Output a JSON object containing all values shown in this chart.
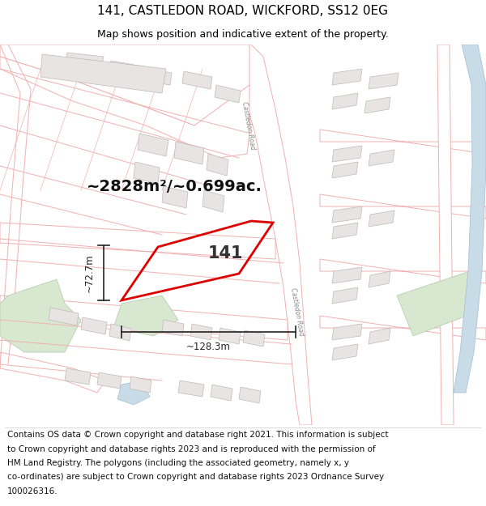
{
  "title": "141, CASTLEDON ROAD, WICKFORD, SS12 0EG",
  "subtitle": "Map shows position and indicative extent of the property.",
  "area_text": "~2828m²/~0.699ac.",
  "label_141": "141",
  "dim_width": "~128.3m",
  "dim_height": "~72.7m",
  "footer_lines": [
    "Contains OS data © Crown copyright and database right 2021. This information is subject",
    "to Crown copyright and database rights 2023 and is reproduced with the permission of",
    "HM Land Registry. The polygons (including the associated geometry, namely x, y",
    "co-ordinates) are subject to Crown copyright and database rights 2023 Ordnance Survey",
    "100026316."
  ],
  "map_bg": "#ffffff",
  "road_ec": "#f0b0b0",
  "road_fc": "#fce8e8",
  "bld_ec": "#d8b0b0",
  "bld_fc": "#f0e8e8",
  "gray_bld_ec": "#c0b8b8",
  "gray_bld_fc": "#e8e4e4",
  "green_fc": "#d8e8d0",
  "green_ec": "#b0c8a8",
  "blue_fc": "#c8dce8",
  "blue_ec": "#a0bcd0",
  "highlight_ec": "#dd0000",
  "dim_color": "#222222",
  "castledon_label_color": "#888888",
  "title_fontsize": 11,
  "subtitle_fontsize": 9,
  "footer_fontsize": 7.5,
  "area_fontsize": 14,
  "label_fontsize": 15,
  "dim_fontsize": 8.5
}
